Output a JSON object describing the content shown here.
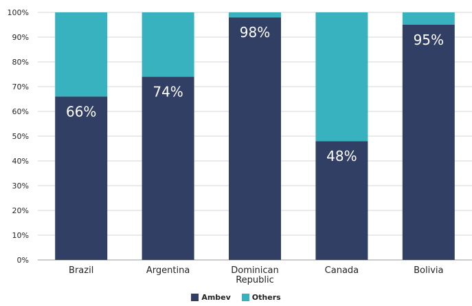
{
  "chart_data": {
    "type": "bar",
    "stacked": true,
    "categories": [
      "Brazil",
      "Argentina",
      "Dominican Republic",
      "Canada",
      "Bolivia"
    ],
    "series": [
      {
        "name": "Ambev",
        "values": [
          66,
          74,
          98,
          48,
          95
        ],
        "color": "#323f64"
      },
      {
        "name": "Others",
        "values": [
          34,
          26,
          2,
          52,
          5
        ],
        "color": "#37b2be"
      }
    ],
    "data_labels": [
      "66%",
      "74%",
      "98%",
      "48%",
      "95%"
    ],
    "y_ticks": [
      "0%",
      "10%",
      "20%",
      "30%",
      "40%",
      "50%",
      "60%",
      "70%",
      "80%",
      "90%",
      "100%"
    ],
    "ylim": [
      0,
      100
    ],
    "grid": true,
    "legend_position": "bottom"
  }
}
